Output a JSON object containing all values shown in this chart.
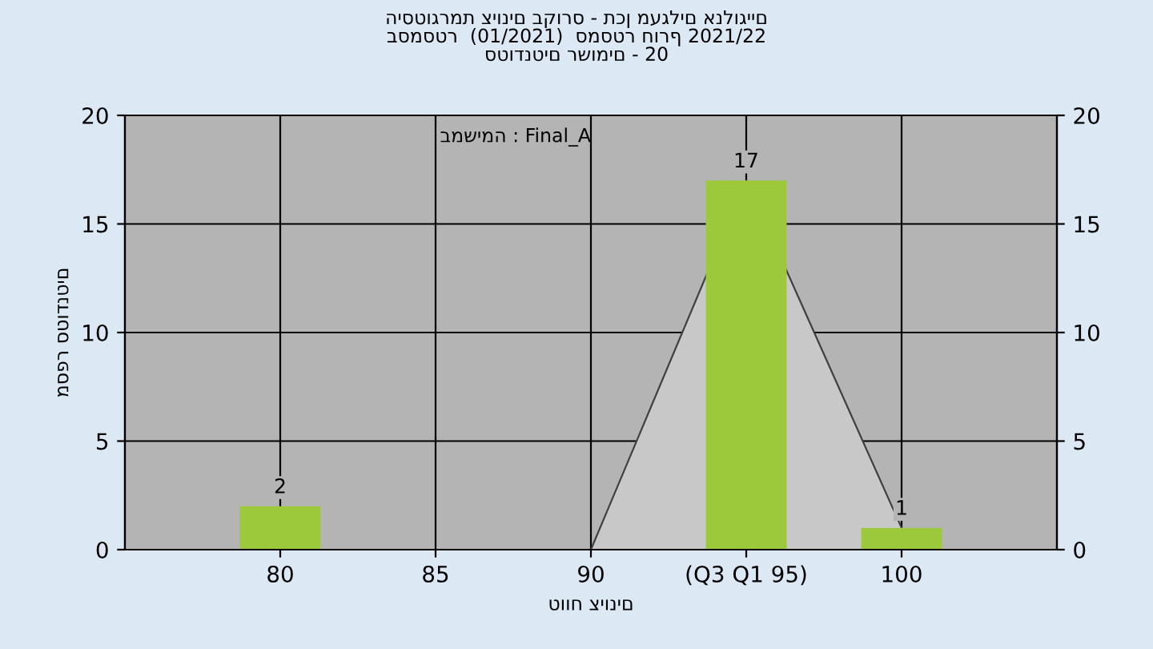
{
  "chart_data": {
    "type": "bar",
    "title": "היסטוגרמת ציונים בקורס - תכן מעגלים אנלוגיים\nבסמסטר  (01/2021)  סמסטר חורף 2021/22\nסטודנטים רשומים - 20",
    "xlabel": "טווח ציונים",
    "ylabel": "מספר סטודנטים",
    "annotations": [
      "במשימה : Final_A"
    ],
    "categories": [
      "80",
      "85",
      "90",
      "(Q3 Q1 95)",
      "100"
    ],
    "series": [
      {
        "color": "#9cc83c",
        "values": [
          2,
          0,
          0,
          17,
          1
        ],
        "value_labels": [
          "2",
          null,
          null,
          "17",
          "1"
        ]
      },
      {
        "type": "area",
        "color": "#c8c8c8",
        "values": [
          null,
          null,
          0,
          17,
          1
        ]
      }
    ],
    "ylim": [
      0,
      20
    ],
    "yticks": [
      0,
      5,
      10,
      15,
      20
    ],
    "y2lim": [
      0,
      20
    ],
    "y2ticks": [
      0,
      5,
      10,
      15,
      20
    ],
    "grid": true,
    "legend": false
  }
}
